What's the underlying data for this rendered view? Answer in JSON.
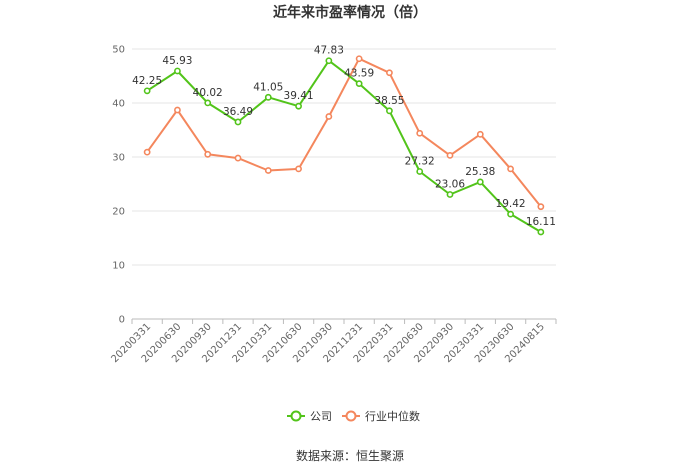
{
  "chart_data": {
    "type": "line",
    "title": "近年来市盈率情况（倍）",
    "categories": [
      "20200331",
      "20200630",
      "20200930",
      "20201231",
      "20210331",
      "20210630",
      "20210930",
      "20211231",
      "20220331",
      "20220630",
      "20220930",
      "20230331",
      "20230630",
      "20240815"
    ],
    "series": [
      {
        "name": "公司",
        "color": "#52c41a",
        "values": [
          42.25,
          45.93,
          40.02,
          36.49,
          41.05,
          39.41,
          47.83,
          43.59,
          38.55,
          27.32,
          23.06,
          25.38,
          19.42,
          16.11
        ],
        "labels": [
          "42.25",
          "45.93",
          "40.02",
          "36.49",
          "41.05",
          "39.41",
          "47.83",
          "43.59",
          "38.55",
          "27.32",
          "23.06",
          "25.38",
          "19.42",
          "16.11"
        ]
      },
      {
        "name": "行业中位数",
        "color": "#f4875d",
        "values": [
          30.9,
          38.7,
          30.5,
          29.8,
          27.5,
          27.8,
          37.5,
          48.2,
          45.6,
          34.4,
          30.3,
          34.2,
          27.8,
          20.8
        ]
      }
    ],
    "yticks": [
      "0",
      "10",
      "20",
      "30",
      "40",
      "50"
    ],
    "ylim": [
      0,
      50
    ],
    "grid": true,
    "legend_position": "bottom"
  },
  "source_text": "数据来源：恒生聚源"
}
